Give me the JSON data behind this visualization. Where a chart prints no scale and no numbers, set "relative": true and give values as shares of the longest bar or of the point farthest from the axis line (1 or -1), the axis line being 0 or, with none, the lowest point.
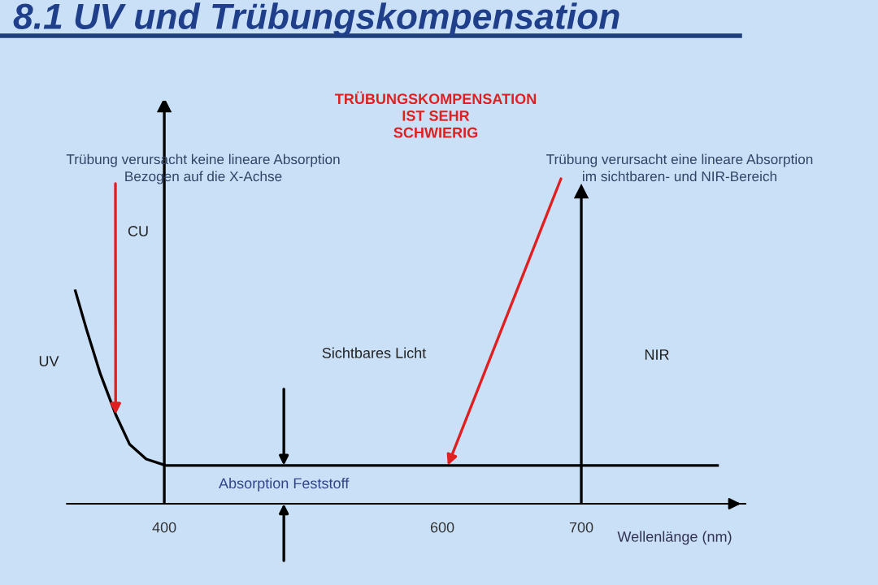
{
  "chart_data": {
    "type": "line",
    "title": "8.1 UV und Trübungskompensation",
    "subtitle": "TRÜBUNGSKOMPENSATION\nIST SEHR\nSCHWIERIG",
    "xlabel": "Wellenlänge (nm)",
    "relative": true,
    "series": [
      {
        "color": "#000000",
        "x": [
          336,
          344,
          354,
          365,
          375,
          387,
          401,
          798
        ],
        "values": [
          1,
          0.82,
          0.61,
          0.42,
          0.28,
          0.21,
          0.18,
          0.18
        ]
      }
    ],
    "xlim": [
      330,
      818
    ],
    "xticks": [
      400,
      600,
      700
    ],
    "tick_labels": "x",
    "grid": false,
    "marker": "none",
    "line_style": "solid",
    "ref_lines": [
      {
        "axis": "x",
        "value": 400,
        "label": "CU",
        "color": "#000000"
      },
      {
        "axis": "x",
        "value": 700,
        "label": null,
        "color": "#000000"
      }
    ],
    "annotations": [
      {
        "text": "Trübung verursacht keine lineare Absorption\nBezogen auf die X-Achse",
        "x": 365,
        "y": 0.42
      },
      {
        "text": "Trübung verursacht eine lineare Absorption\nim sichtbaren- und NIR-Bereich",
        "x": 604,
        "y": 0.18
      },
      "UV",
      "Sichtbares Licht",
      "NIR",
      {
        "text": "Absorption Feststoff",
        "x": 486,
        "y": 0.18
      }
    ]
  }
}
